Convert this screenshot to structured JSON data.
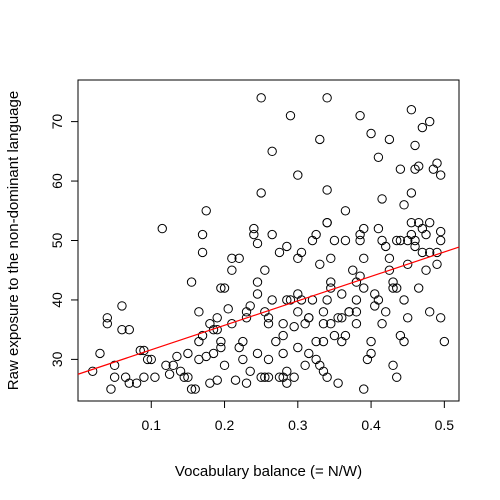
{
  "chart_data": {
    "type": "scatter",
    "title": "",
    "xlabel": "Vocabulary balance (= N/W)",
    "ylabel": "Raw exposure to the non-dominant language",
    "xlim": [
      0.0,
      0.52
    ],
    "ylim": [
      23,
      77
    ],
    "xticks": [
      0.1,
      0.2,
      0.3,
      0.4,
      0.5
    ],
    "yticks": [
      30,
      40,
      50,
      60,
      70
    ],
    "grid": false,
    "legend": "none",
    "point_color": "#000000",
    "line_color": "#ff0000",
    "regression_line": {
      "x": [
        0.0,
        0.52
      ],
      "y": [
        27.5,
        48.9
      ]
    },
    "points": [
      [
        0.02,
        28
      ],
      [
        0.03,
        31
      ],
      [
        0.04,
        36
      ],
      [
        0.04,
        37
      ],
      [
        0.045,
        25
      ],
      [
        0.05,
        29
      ],
      [
        0.05,
        27
      ],
      [
        0.06,
        35
      ],
      [
        0.06,
        39
      ],
      [
        0.065,
        27
      ],
      [
        0.07,
        35
      ],
      [
        0.07,
        26
      ],
      [
        0.08,
        26
      ],
      [
        0.085,
        31.5
      ],
      [
        0.09,
        31.5
      ],
      [
        0.09,
        27
      ],
      [
        0.095,
        30
      ],
      [
        0.1,
        30
      ],
      [
        0.105,
        27
      ],
      [
        0.115,
        52
      ],
      [
        0.12,
        29
      ],
      [
        0.125,
        27.5
      ],
      [
        0.13,
        29
      ],
      [
        0.135,
        30.5
      ],
      [
        0.14,
        28
      ],
      [
        0.145,
        27
      ],
      [
        0.15,
        31
      ],
      [
        0.15,
        27
      ],
      [
        0.155,
        25
      ],
      [
        0.155,
        43
      ],
      [
        0.16,
        25
      ],
      [
        0.165,
        33
      ],
      [
        0.165,
        30
      ],
      [
        0.165,
        38
      ],
      [
        0.17,
        48
      ],
      [
        0.17,
        51
      ],
      [
        0.17,
        34
      ],
      [
        0.175,
        55
      ],
      [
        0.175,
        30.5
      ],
      [
        0.18,
        26
      ],
      [
        0.18,
        36
      ],
      [
        0.185,
        31
      ],
      [
        0.185,
        35
      ],
      [
        0.19,
        35
      ],
      [
        0.19,
        26.5
      ],
      [
        0.19,
        37
      ],
      [
        0.195,
        42
      ],
      [
        0.195,
        33
      ],
      [
        0.195,
        32
      ],
      [
        0.2,
        42
      ],
      [
        0.2,
        29
      ],
      [
        0.205,
        38.5
      ],
      [
        0.21,
        47
      ],
      [
        0.21,
        45
      ],
      [
        0.21,
        36
      ],
      [
        0.215,
        26.5
      ],
      [
        0.22,
        47
      ],
      [
        0.22,
        32
      ],
      [
        0.225,
        33
      ],
      [
        0.225,
        30
      ],
      [
        0.23,
        38
      ],
      [
        0.23,
        37
      ],
      [
        0.23,
        26
      ],
      [
        0.235,
        39
      ],
      [
        0.235,
        28
      ],
      [
        0.24,
        52
      ],
      [
        0.24,
        51
      ],
      [
        0.245,
        49.5
      ],
      [
        0.245,
        43
      ],
      [
        0.245,
        41
      ],
      [
        0.245,
        31
      ],
      [
        0.25,
        74
      ],
      [
        0.25,
        58
      ],
      [
        0.25,
        27
      ],
      [
        0.255,
        45
      ],
      [
        0.255,
        38
      ],
      [
        0.255,
        27
      ],
      [
        0.26,
        37
      ],
      [
        0.26,
        36
      ],
      [
        0.26,
        30
      ],
      [
        0.26,
        27
      ],
      [
        0.265,
        65
      ],
      [
        0.265,
        51
      ],
      [
        0.265,
        40
      ],
      [
        0.27,
        33
      ],
      [
        0.275,
        27
      ],
      [
        0.275,
        48
      ],
      [
        0.28,
        36
      ],
      [
        0.28,
        34
      ],
      [
        0.28,
        31
      ],
      [
        0.28,
        27
      ],
      [
        0.285,
        49
      ],
      [
        0.285,
        40
      ],
      [
        0.285,
        28
      ],
      [
        0.285,
        26
      ],
      [
        0.29,
        71
      ],
      [
        0.29,
        40
      ],
      [
        0.295,
        35.5
      ],
      [
        0.295,
        27
      ],
      [
        0.3,
        61
      ],
      [
        0.3,
        47
      ],
      [
        0.3,
        41
      ],
      [
        0.3,
        38
      ],
      [
        0.3,
        32
      ],
      [
        0.305,
        48
      ],
      [
        0.305,
        40
      ],
      [
        0.31,
        36
      ],
      [
        0.31,
        29
      ],
      [
        0.315,
        37
      ],
      [
        0.315,
        37
      ],
      [
        0.315,
        31
      ],
      [
        0.32,
        50
      ],
      [
        0.32,
        40
      ],
      [
        0.325,
        51
      ],
      [
        0.325,
        33
      ],
      [
        0.325,
        30
      ],
      [
        0.33,
        67
      ],
      [
        0.33,
        46
      ],
      [
        0.33,
        29
      ],
      [
        0.335,
        38
      ],
      [
        0.335,
        36
      ],
      [
        0.335,
        33
      ],
      [
        0.335,
        28
      ],
      [
        0.34,
        74
      ],
      [
        0.34,
        58.5
      ],
      [
        0.34,
        53
      ],
      [
        0.34,
        53
      ],
      [
        0.34,
        40
      ],
      [
        0.34,
        27
      ],
      [
        0.345,
        47
      ],
      [
        0.345,
        43
      ],
      [
        0.345,
        42
      ],
      [
        0.345,
        36
      ],
      [
        0.35,
        50
      ],
      [
        0.35,
        34
      ],
      [
        0.355,
        37
      ],
      [
        0.355,
        26
      ],
      [
        0.36,
        41
      ],
      [
        0.36,
        37
      ],
      [
        0.36,
        33
      ],
      [
        0.365,
        55
      ],
      [
        0.365,
        50
      ],
      [
        0.365,
        34
      ],
      [
        0.37,
        38
      ],
      [
        0.37,
        38
      ],
      [
        0.375,
        45
      ],
      [
        0.38,
        43
      ],
      [
        0.38,
        40
      ],
      [
        0.38,
        38
      ],
      [
        0.38,
        36
      ],
      [
        0.385,
        71
      ],
      [
        0.385,
        50
      ],
      [
        0.385,
        51
      ],
      [
        0.385,
        44
      ],
      [
        0.39,
        52
      ],
      [
        0.39,
        47
      ],
      [
        0.39,
        42
      ],
      [
        0.39,
        25
      ],
      [
        0.395,
        30
      ],
      [
        0.4,
        68
      ],
      [
        0.4,
        33
      ],
      [
        0.4,
        31
      ],
      [
        0.405,
        41
      ],
      [
        0.405,
        39
      ],
      [
        0.41,
        64
      ],
      [
        0.41,
        52
      ],
      [
        0.41,
        40
      ],
      [
        0.415,
        57
      ],
      [
        0.415,
        50
      ],
      [
        0.415,
        36
      ],
      [
        0.42,
        49
      ],
      [
        0.42,
        38
      ],
      [
        0.425,
        67
      ],
      [
        0.425,
        47
      ],
      [
        0.425,
        45
      ],
      [
        0.43,
        43
      ],
      [
        0.43,
        42
      ],
      [
        0.43,
        29
      ],
      [
        0.435,
        50
      ],
      [
        0.435,
        42
      ],
      [
        0.435,
        27
      ],
      [
        0.44,
        62
      ],
      [
        0.44,
        50
      ],
      [
        0.44,
        34
      ],
      [
        0.445,
        56
      ],
      [
        0.445,
        40
      ],
      [
        0.445,
        33
      ],
      [
        0.45,
        50
      ],
      [
        0.45,
        46
      ],
      [
        0.45,
        37
      ],
      [
        0.455,
        72
      ],
      [
        0.455,
        58
      ],
      [
        0.455,
        53
      ],
      [
        0.455,
        51
      ],
      [
        0.46,
        66
      ],
      [
        0.46,
        62
      ],
      [
        0.46,
        50
      ],
      [
        0.46,
        49
      ],
      [
        0.465,
        62.5
      ],
      [
        0.465,
        53
      ],
      [
        0.465,
        42
      ],
      [
        0.47,
        69
      ],
      [
        0.47,
        52
      ],
      [
        0.47,
        48
      ],
      [
        0.475,
        51
      ],
      [
        0.475,
        45
      ],
      [
        0.48,
        70
      ],
      [
        0.48,
        53
      ],
      [
        0.48,
        48
      ],
      [
        0.48,
        38
      ],
      [
        0.485,
        62
      ],
      [
        0.49,
        63
      ],
      [
        0.49,
        48
      ],
      [
        0.49,
        46
      ],
      [
        0.495,
        61
      ],
      [
        0.495,
        51.5
      ],
      [
        0.495,
        50
      ],
      [
        0.495,
        37
      ],
      [
        0.5,
        33
      ]
    ]
  }
}
